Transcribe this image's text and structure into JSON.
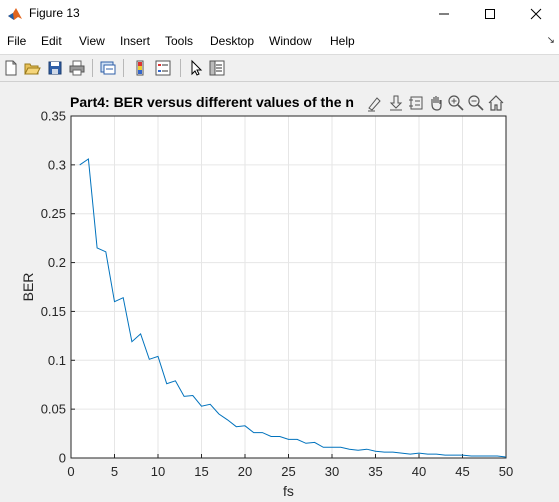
{
  "window": {
    "title": "Figure 13",
    "controls": [
      "minimize",
      "maximize",
      "close"
    ]
  },
  "menu": {
    "items": [
      "File",
      "Edit",
      "View",
      "Insert",
      "Tools",
      "Desktop",
      "Window",
      "Help"
    ]
  },
  "toolbar": {
    "buttons": [
      "new-figure-icon",
      "open-file-icon",
      "save-icon",
      "print-icon",
      "link-plot-icon",
      "insert-colorbar-icon",
      "insert-legend-icon",
      "edit-plot-icon",
      "property-inspector-icon"
    ]
  },
  "axes_toolbar": {
    "buttons": [
      "brush-icon",
      "data-tips-icon",
      "pan-icon",
      "zoom-in-icon",
      "zoom-out-icon",
      "home-icon"
    ]
  },
  "chart_data": {
    "type": "line",
    "title": "Part4: BER versus different values of the n",
    "xlabel": "fs",
    "ylabel": "BER",
    "xlim": [
      0,
      50
    ],
    "ylim": [
      0,
      0.35
    ],
    "xticks": [
      0,
      5,
      10,
      15,
      20,
      25,
      30,
      35,
      40,
      45,
      50
    ],
    "yticks": [
      0,
      0.05,
      0.1,
      0.15,
      0.2,
      0.25,
      0.3,
      0.35
    ],
    "ytick_labels": [
      "0",
      "0.05",
      "0.1",
      "0.15",
      "0.2",
      "0.25",
      "0.3",
      "0.35"
    ],
    "grid": true,
    "line_color": "#0072BD",
    "series": [
      {
        "x": [
          1,
          2,
          3,
          4,
          5,
          6,
          7,
          8,
          9,
          10,
          11,
          12,
          13,
          14,
          15,
          16,
          17,
          18,
          19,
          20,
          21,
          22,
          23,
          24,
          25,
          26,
          27,
          28,
          29,
          30,
          31,
          32,
          33,
          34,
          35,
          36,
          37,
          38,
          39,
          40,
          41,
          42,
          43,
          44,
          45,
          46,
          47,
          48,
          49,
          50
        ],
        "values": [
          0.3,
          0.306,
          0.215,
          0.211,
          0.16,
          0.164,
          0.119,
          0.127,
          0.101,
          0.104,
          0.076,
          0.079,
          0.063,
          0.064,
          0.053,
          0.055,
          0.045,
          0.039,
          0.032,
          0.033,
          0.026,
          0.026,
          0.022,
          0.022,
          0.019,
          0.019,
          0.015,
          0.016,
          0.011,
          0.011,
          0.011,
          0.009,
          0.008,
          0.009,
          0.007,
          0.006,
          0.006,
          0.005,
          0.004,
          0.005,
          0.004,
          0.004,
          0.003,
          0.003,
          0.003,
          0.002,
          0.002,
          0.002,
          0.002,
          0.001
        ]
      }
    ]
  }
}
